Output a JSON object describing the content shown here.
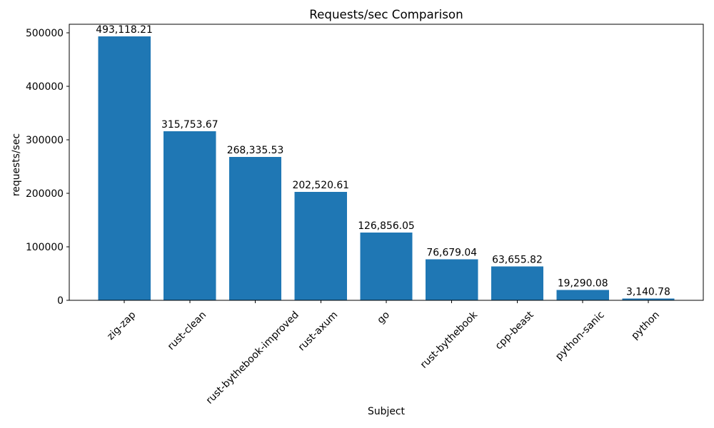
{
  "chart_data": {
    "type": "bar",
    "title": "Requests/sec Comparison",
    "xlabel": "Subject",
    "ylabel": "requests/sec",
    "categories": [
      "zig-zap",
      "rust-clean",
      "rust-bythebook-improved",
      "rust-axum",
      "go",
      "rust-bythebook",
      "cpp-beast",
      "python-sanic",
      "python"
    ],
    "values": [
      493118.21,
      315753.67,
      268335.53,
      202520.61,
      126856.05,
      76679.04,
      63655.82,
      19290.08,
      3140.78
    ],
    "value_labels": [
      "493,118.21",
      "315,753.67",
      "268,335.53",
      "202,520.61",
      "126,856.05",
      "76,679.04",
      "63,655.82",
      "19,290.08",
      "3,140.78"
    ],
    "yticks": [
      0,
      100000,
      200000,
      300000,
      400000,
      500000
    ],
    "ytick_labels": [
      "0",
      "100000",
      "200000",
      "300000",
      "400000",
      "500000"
    ],
    "ylim": [
      0,
      516000
    ],
    "x_tick_rotation_deg": 45,
    "bar_width_fraction": 0.8,
    "bar_color": "#1f77b4",
    "text_color": "#000000",
    "spine_color": "#000000",
    "background_color": "#ffffff",
    "grid": false,
    "legend": null
  }
}
